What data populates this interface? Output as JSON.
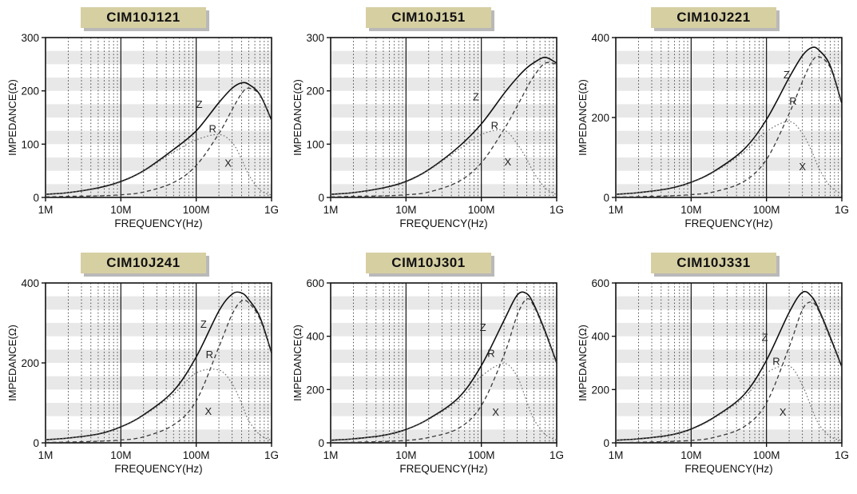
{
  "styles": {
    "title_bg": "#d6cfa2",
    "title_shadow": "#b9b9b9",
    "band_color": "#e8e8e8",
    "frame_color": "#111111",
    "grid_color": "#222222",
    "z_color": "#111111",
    "r_color": "#3a3a3a",
    "x_color": "#6e6e6e"
  },
  "axis": {
    "x_label": "FREQUENCY(Hz)",
    "y_label": "IMPEDANCE(Ω)",
    "x_ticks": [
      "1M",
      "10M",
      "100M",
      "1G"
    ]
  },
  "chart_data": [
    {
      "type": "line",
      "title": "CIM10J121",
      "xlabel": "FREQUENCY(Hz)",
      "ylabel": "IMPEDANCE(Ω)",
      "x_scale": "log",
      "xlim_mhz": [
        1,
        1000
      ],
      "x_tick_labels": [
        "1M",
        "10M",
        "100M",
        "1G"
      ],
      "ylim": [
        0,
        300
      ],
      "yticks": [
        0,
        100,
        200,
        300
      ],
      "x_mhz": [
        1,
        2,
        5,
        10,
        20,
        50,
        100,
        200,
        300,
        400,
        500,
        700,
        1000
      ],
      "series": [
        {
          "name": "Z",
          "style": "solid",
          "values": [
            6,
            9,
            18,
            30,
            50,
            90,
            125,
            178,
            205,
            215,
            212,
            193,
            145
          ],
          "label_at": {
            "x_mhz": 110,
            "y": 168
          }
        },
        {
          "name": "R",
          "style": "dashed",
          "values": [
            1,
            2,
            3,
            5,
            10,
            28,
            60,
            120,
            165,
            195,
            205,
            192,
            144
          ],
          "label_at": {
            "x_mhz": 165,
            "y": 122
          }
        },
        {
          "name": "X",
          "style": "dotted",
          "values": [
            6,
            9,
            17,
            29,
            49,
            85,
            108,
            118,
            103,
            72,
            42,
            14,
            4
          ],
          "label_at": {
            "x_mhz": 265,
            "y": 58
          }
        }
      ]
    },
    {
      "type": "line",
      "title": "CIM10J151",
      "xlabel": "FREQUENCY(Hz)",
      "ylabel": "IMPEDANCE(Ω)",
      "x_scale": "log",
      "xlim_mhz": [
        1,
        1000
      ],
      "x_tick_labels": [
        "1M",
        "10M",
        "100M",
        "1G"
      ],
      "ylim": [
        0,
        300
      ],
      "yticks": [
        0,
        100,
        200,
        300
      ],
      "x_mhz": [
        1,
        2,
        5,
        10,
        20,
        50,
        100,
        200,
        300,
        400,
        500,
        700,
        1000
      ],
      "series": [
        {
          "name": "Z",
          "style": "solid",
          "values": [
            6,
            9,
            18,
            30,
            52,
            95,
            138,
            195,
            225,
            243,
            253,
            263,
            252
          ],
          "label_at": {
            "x_mhz": 85,
            "y": 182
          }
        },
        {
          "name": "R",
          "style": "dashed",
          "values": [
            1,
            2,
            3,
            5,
            10,
            30,
            65,
            128,
            172,
            205,
            228,
            252,
            250
          ],
          "label_at": {
            "x_mhz": 150,
            "y": 128
          }
        },
        {
          "name": "X",
          "style": "dotted",
          "values": [
            6,
            9,
            17,
            29,
            51,
            90,
            118,
            126,
            100,
            72,
            46,
            18,
            5
          ],
          "label_at": {
            "x_mhz": 225,
            "y": 60
          }
        }
      ]
    },
    {
      "type": "line",
      "title": "CIM10J221",
      "xlabel": "FREQUENCY(Hz)",
      "ylabel": "IMPEDANCE(Ω)",
      "x_scale": "log",
      "xlim_mhz": [
        1,
        1000
      ],
      "x_tick_labels": [
        "1M",
        "10M",
        "100M",
        "1G"
      ],
      "ylim": [
        0,
        400
      ],
      "yticks": [
        0,
        200,
        400
      ],
      "x_mhz": [
        1,
        2,
        5,
        10,
        20,
        50,
        100,
        200,
        300,
        400,
        500,
        700,
        1000
      ],
      "series": [
        {
          "name": "Z",
          "style": "solid",
          "values": [
            8,
            12,
            22,
            38,
            65,
            120,
            195,
            300,
            355,
            375,
            368,
            330,
            235
          ],
          "label_at": {
            "x_mhz": 185,
            "y": 298
          }
        },
        {
          "name": "R",
          "style": "dashed",
          "values": [
            1,
            2,
            4,
            7,
            14,
            40,
            95,
            210,
            290,
            340,
            352,
            325,
            234
          ],
          "label_at": {
            "x_mhz": 225,
            "y": 232
          }
        },
        {
          "name": "X",
          "style": "dotted",
          "values": [
            8,
            12,
            21,
            37,
            63,
            113,
            165,
            190,
            160,
            115,
            72,
            28,
            8
          ],
          "label_at": {
            "x_mhz": 300,
            "y": 68
          }
        }
      ]
    },
    {
      "type": "line",
      "title": "CIM10J241",
      "xlabel": "FREQUENCY(Hz)",
      "ylabel": "IMPEDANCE(Ω)",
      "x_scale": "log",
      "xlim_mhz": [
        1,
        1000
      ],
      "x_tick_labels": [
        "1M",
        "10M",
        "100M",
        "1G"
      ],
      "ylim": [
        0,
        400
      ],
      "yticks": [
        0,
        200,
        400
      ],
      "x_mhz": [
        1,
        2,
        5,
        10,
        20,
        50,
        100,
        200,
        300,
        400,
        500,
        700,
        1000
      ],
      "series": [
        {
          "name": "Z",
          "style": "solid",
          "values": [
            8,
            12,
            22,
            40,
            70,
            130,
            215,
            330,
            372,
            375,
            358,
            315,
            225
          ],
          "label_at": {
            "x_mhz": 125,
            "y": 288
          }
        },
        {
          "name": "R",
          "style": "dashed",
          "values": [
            1,
            2,
            4,
            7,
            15,
            45,
            105,
            240,
            322,
            355,
            350,
            310,
            224
          ],
          "label_at": {
            "x_mhz": 150,
            "y": 212
          }
        },
        {
          "name": "X",
          "style": "dotted",
          "values": [
            8,
            12,
            21,
            39,
            68,
            122,
            175,
            182,
            148,
            98,
            55,
            20,
            6
          ],
          "label_at": {
            "x_mhz": 145,
            "y": 70
          }
        }
      ]
    },
    {
      "type": "line",
      "title": "CIM10J301",
      "xlabel": "FREQUENCY(Hz)",
      "ylabel": "IMPEDANCE(Ω)",
      "x_scale": "log",
      "xlim_mhz": [
        1,
        1000
      ],
      "x_tick_labels": [
        "1M",
        "10M",
        "100M",
        "1G"
      ],
      "ylim": [
        0,
        600
      ],
      "yticks": [
        0,
        200,
        400,
        600
      ],
      "x_mhz": [
        1,
        2,
        5,
        10,
        20,
        50,
        100,
        200,
        300,
        400,
        500,
        700,
        1000
      ],
      "series": [
        {
          "name": "Z",
          "style": "solid",
          "values": [
            10,
            15,
            28,
            50,
            90,
            170,
            290,
            460,
            555,
            560,
            518,
            420,
            300
          ],
          "label_at": {
            "x_mhz": 105,
            "y": 420
          }
        },
        {
          "name": "R",
          "style": "dashed",
          "values": [
            1,
            2,
            5,
            9,
            20,
            55,
            140,
            330,
            480,
            540,
            512,
            415,
            299
          ],
          "label_at": {
            "x_mhz": 135,
            "y": 322
          }
        },
        {
          "name": "X",
          "style": "dotted",
          "values": [
            10,
            15,
            27,
            49,
            88,
            160,
            250,
            298,
            248,
            155,
            88,
            32,
            10
          ],
          "label_at": {
            "x_mhz": 155,
            "y": 102
          }
        }
      ]
    },
    {
      "type": "line",
      "title": "CIM10J331",
      "xlabel": "FREQUENCY(Hz)",
      "ylabel": "IMPEDANCE(Ω)",
      "x_scale": "log",
      "xlim_mhz": [
        1,
        1000
      ],
      "x_tick_labels": [
        "1M",
        "10M",
        "100M",
        "1G"
      ],
      "ylim": [
        0,
        600
      ],
      "yticks": [
        0,
        200,
        400,
        600
      ],
      "x_mhz": [
        1,
        2,
        5,
        10,
        20,
        50,
        100,
        200,
        300,
        400,
        500,
        700,
        1000
      ],
      "series": [
        {
          "name": "Z",
          "style": "solid",
          "values": [
            10,
            15,
            28,
            52,
            95,
            180,
            310,
            490,
            565,
            548,
            498,
            398,
            285
          ],
          "label_at": {
            "x_mhz": 95,
            "y": 382
          }
        },
        {
          "name": "R",
          "style": "dashed",
          "values": [
            1,
            2,
            5,
            9,
            20,
            60,
            150,
            360,
            500,
            528,
            492,
            393,
            284
          ],
          "label_at": {
            "x_mhz": 135,
            "y": 292
          }
        },
        {
          "name": "X",
          "style": "dotted",
          "values": [
            10,
            15,
            27,
            50,
            92,
            170,
            262,
            288,
            215,
            128,
            68,
            24,
            8
          ],
          "label_at": {
            "x_mhz": 165,
            "y": 102
          }
        }
      ]
    }
  ]
}
